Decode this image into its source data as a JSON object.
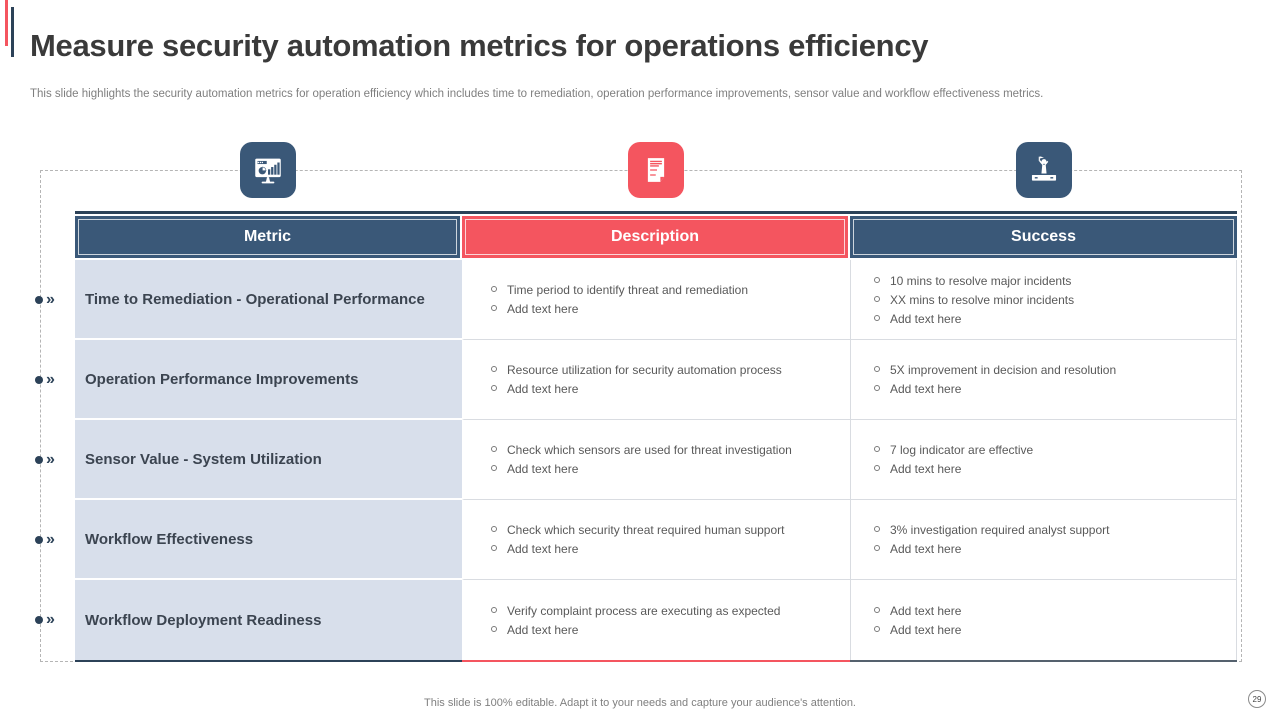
{
  "slide": {
    "title": "Measure security automation metrics for operations efficiency",
    "subtitle": "This slide highlights the security automation metrics for operation efficiency which includes time to remediation, operation performance improvements, sensor value and workflow effectiveness metrics.",
    "footer_note": "This slide is 100% editable. Adapt it to your needs and capture your audience's attention.",
    "page_number": "29"
  },
  "icons": {
    "metric_column": "monitor-analytics-icon",
    "description_column": "document-icon",
    "success_column": "winner-podium-icon"
  },
  "table": {
    "headers": [
      {
        "label": "Metric"
      },
      {
        "label": "Description"
      },
      {
        "label": "Success"
      }
    ],
    "rows": [
      {
        "metric": "Time to Remediation - Operational Performance",
        "description": [
          "Time period to identify threat and remediation",
          "Add text here"
        ],
        "success": [
          "10 mins to resolve major incidents",
          "XX mins to resolve minor incidents",
          "Add text here"
        ]
      },
      {
        "metric": "Operation Performance Improvements",
        "description": [
          "Resource utilization for security automation process",
          "Add text here"
        ],
        "success": [
          "5X improvement in decision and resolution",
          "Add text here"
        ]
      },
      {
        "metric": "Sensor Value - System Utilization",
        "description": [
          "Check which sensors are used for threat investigation",
          "Add text here"
        ],
        "success": [
          "7 log indicator are effective",
          "Add text here"
        ]
      },
      {
        "metric": "Workflow Effectiveness",
        "description": [
          "Check which security threat required human support",
          "Add text here"
        ],
        "success": [
          "3% investigation required analyst support",
          "Add text here"
        ]
      },
      {
        "metric": "Workflow Deployment Readiness",
        "description": [
          "Verify complaint process are executing as expected",
          "Add text here"
        ],
        "success": [
          "Add text here",
          "Add text here"
        ]
      }
    ]
  },
  "colors": {
    "navy": "#3a5878",
    "navy_dark": "#2c4258",
    "red": "#f4555f",
    "metric_bg": "#d8dfeb",
    "title_text": "#3a3a3a",
    "body_text": "#595959",
    "muted_text": "#7f7f7f"
  }
}
